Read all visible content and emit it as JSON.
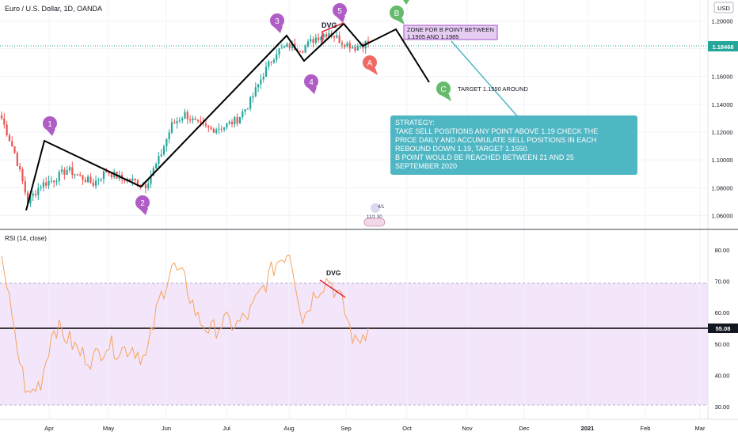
{
  "header": {
    "symbol_title": "Euro / U.S. Dollar, 1D, OANDA",
    "currency_label": "USD"
  },
  "price_axis": {
    "ticks": [
      "1.20000",
      "1.18000",
      "1.16000",
      "1.14000",
      "1.12000",
      "1.10000",
      "1.08000",
      "1.06000"
    ],
    "last_price_label": "1.18468"
  },
  "time_axis": {
    "labels": [
      "Apr",
      "May",
      "Jun",
      "Jul",
      "Aug",
      "Sep",
      "Oct",
      "Nov",
      "Dec",
      "2021",
      "Feb",
      "Mar"
    ]
  },
  "waves": [
    {
      "label": "1",
      "color": "#b05cc7"
    },
    {
      "label": "2",
      "color": "#b05cc7"
    },
    {
      "label": "3",
      "color": "#b05cc7"
    },
    {
      "label": "4",
      "color": "#b05cc7"
    },
    {
      "label": "5",
      "color": "#b05cc7"
    },
    {
      "label": "A",
      "color": "#f06a63"
    },
    {
      "label": "B",
      "color": "#66bb6a"
    },
    {
      "label": "C",
      "color": "#66bb6a"
    }
  ],
  "annotations": {
    "dvg_price": "DVG",
    "dvg_rsi": "DVG",
    "zone_text": "ZONE FOR B POINT BETWEEN\n1.1905 AND 1.1985",
    "target_text": "TARGET 1.1550 AROUND",
    "strategy_text": "STRATEGY:\nTAKE SELL POSITIONS ANY POINT ABOVE 1.19 CHECK THE\nPRICE DAILY AND ACCUMULATE SELL POSITIONS IN EACH\nREBOUND DOWN 1.19, TARGET 1.1550.\nB POINT WOULD BE REACHED BETWEEN 21 AND 25\nSEPTEMBER 2020",
    "badge_top": "4/1",
    "badge_bottom": "11/1 30"
  },
  "rsi_panel": {
    "title": "RSI (14, close)",
    "ticks": [
      "80.00",
      "70.00",
      "60.00",
      "50.00",
      "40.00",
      "30.00"
    ],
    "current_label": "55.08"
  },
  "colors": {
    "up": "#26a69a",
    "down": "#ef5350",
    "wave_line": "#000000",
    "rsi_line": "#f7a35c",
    "rsi_band": "#f3e6fb",
    "strategy_bg": "#4fb6c4",
    "zone_bg": "#e7cdf2",
    "dvg_line": "#e0243a",
    "price_line": "#26a69a"
  },
  "chart_data": [
    {
      "type": "candlestick",
      "title": "Euro / U.S. Dollar, 1D, OANDA",
      "x": [
        "2020-03-01",
        "2020-03-08",
        "2020-03-15",
        "2020-03-22",
        "2020-03-29",
        "2020-04-05",
        "2020-04-12",
        "2020-04-19",
        "2020-04-26",
        "2020-05-03",
        "2020-05-10",
        "2020-05-17",
        "2020-05-24",
        "2020-05-31",
        "2020-06-07",
        "2020-06-14",
        "2020-06-21",
        "2020-06-28",
        "2020-07-05",
        "2020-07-12",
        "2020-07-19",
        "2020-07-26",
        "2020-08-02",
        "2020-08-09",
        "2020-08-16",
        "2020-08-23",
        "2020-08-30",
        "2020-09-06",
        "2020-09-13"
      ],
      "close": [
        1.13,
        1.105,
        1.07,
        1.082,
        1.086,
        1.093,
        1.088,
        1.083,
        1.092,
        1.087,
        1.085,
        1.082,
        1.1,
        1.125,
        1.133,
        1.125,
        1.122,
        1.124,
        1.129,
        1.142,
        1.162,
        1.178,
        1.182,
        1.18,
        1.188,
        1.192,
        1.185,
        1.181,
        1.1847
      ],
      "ylim": [
        1.05,
        1.215
      ],
      "last_price": 1.18468,
      "projection": [
        {
          "point": "B",
          "x": "2020-09-23",
          "y": 1.1945
        },
        {
          "point": "C",
          "x": "2020-10-07",
          "y": 1.155
        }
      ]
    },
    {
      "type": "line",
      "title": "RSI (14, close)",
      "x": [
        "2020-03-01",
        "2020-03-08",
        "2020-03-15",
        "2020-03-22",
        "2020-03-29",
        "2020-04-05",
        "2020-04-12",
        "2020-04-19",
        "2020-04-26",
        "2020-05-03",
        "2020-05-10",
        "2020-05-17",
        "2020-05-24",
        "2020-05-31",
        "2020-06-07",
        "2020-06-14",
        "2020-06-21",
        "2020-06-28",
        "2020-07-05",
        "2020-07-12",
        "2020-07-19",
        "2020-07-26",
        "2020-08-02",
        "2020-08-09",
        "2020-08-16",
        "2020-08-23",
        "2020-08-30",
        "2020-09-06",
        "2020-09-13"
      ],
      "values": [
        80,
        52,
        33,
        38,
        56,
        52,
        47,
        45,
        50,
        48,
        49,
        45,
        63,
        75,
        70,
        58,
        54,
        57,
        56,
        60,
        68,
        76,
        80,
        58,
        67,
        71,
        63,
        50,
        55.08
      ],
      "ylim": [
        27,
        85
      ],
      "levels": [
        70,
        55.08,
        30
      ],
      "current": 55.08
    }
  ]
}
